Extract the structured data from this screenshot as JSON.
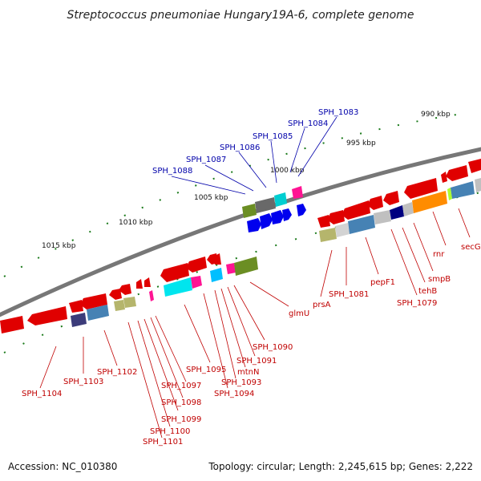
{
  "title": "Streptococcus pneumoniae Hungary19A-6, complete genome",
  "accession": "Accession: NC_010380",
  "summary": "Topology: circular; Length: 2,245,615 bp; Genes: 2,222",
  "ticks": [
    "990 kbp",
    "995 kbp",
    "1000 kbp",
    "1005 kbp",
    "1010 kbp",
    "1015 kbp"
  ],
  "blue_labels": [
    "SPH_1083",
    "SPH_1084",
    "SPH_1085",
    "SPH_1086",
    "SPH_1087",
    "SPH_1088"
  ],
  "red_labels": [
    "secG",
    "rnr",
    "smpB",
    "tehB",
    "SPH_1079",
    "pepF1",
    "SPH_1081",
    "prsA",
    "glmU",
    "SPH_1090",
    "SPH_1091",
    "mtnN",
    "SPH_1093",
    "SPH_1094",
    "SPH_1095",
    "SPH_1097",
    "SPH_1098",
    "SPH_1099",
    "SPH_1100",
    "SPH_1101",
    "SPH_1102",
    "SPH_1103",
    "SPH_1104"
  ]
}
